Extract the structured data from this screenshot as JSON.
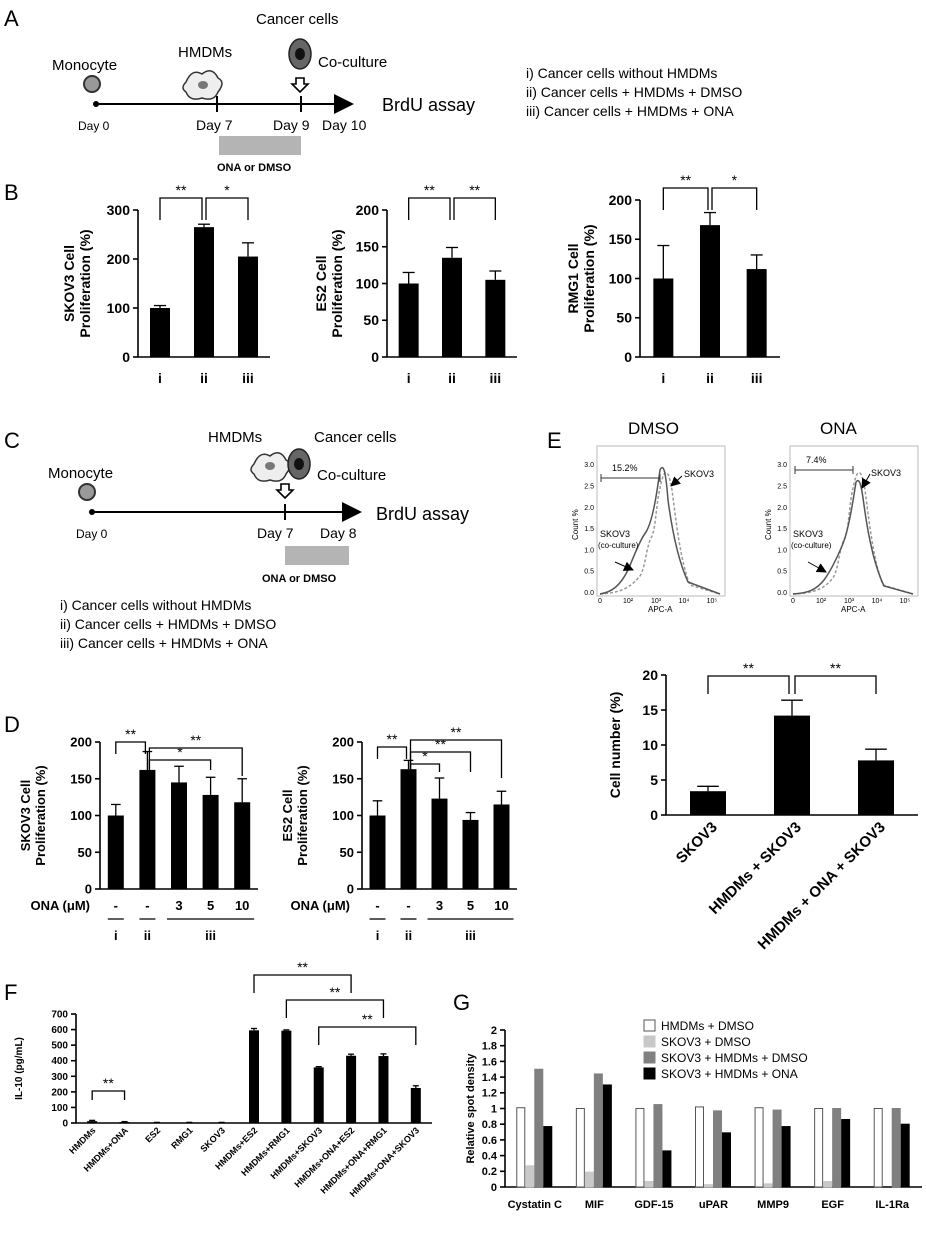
{
  "panel_labels": {
    "A": "A",
    "B": "B",
    "C": "C",
    "D": "D",
    "E": "E",
    "F": "F",
    "G": "G"
  },
  "panelA": {
    "monocyte": "Monocyte",
    "hmdms": "HMDMs",
    "cancer_cells": "Cancer cells",
    "coculture": "Co-culture",
    "assay": "BrdU assay",
    "day0": "Day 0",
    "day7": "Day 7",
    "day9": "Day 9",
    "day10": "Day 10",
    "treatment": "ONA or DMSO",
    "legend": [
      "i) Cancer cells without HMDMs",
      "ii) Cancer cells + HMDMs + DMSO",
      "iii) Cancer cells + HMDMs + ONA"
    ]
  },
  "panelC": {
    "monocyte": "Monocyte",
    "hmdms": "HMDMs",
    "cancer_cells": "Cancer cells",
    "coculture": "Co-culture",
    "assay": "BrdU assay",
    "day0": "Day 0",
    "day7": "Day 7",
    "day8": "Day 8",
    "treatment": "ONA or DMSO",
    "legend": [
      "i) Cancer cells without HMDMs",
      "ii) Cancer cells + HMDMs + DMSO",
      "iii) Cancer cells + HMDMs + ONA"
    ]
  },
  "panelE_flow": {
    "dmso_title": "DMSO",
    "ona_title": "ONA",
    "ylabel": "Count %",
    "xlabel": "APC-A",
    "dmso_gate": "15.2%",
    "ona_gate": "7.4%",
    "skov3": "SKOV3",
    "skov3_co": "SKOV3",
    "co_label": "(co-culture)",
    "yticks": [
      "0.0",
      "0.5",
      "1.0",
      "1.5",
      "2.0",
      "2.5",
      "3.0"
    ],
    "xticks": [
      "0",
      "10²",
      "10³",
      "10⁴",
      "10⁵"
    ]
  },
  "panelD_axis": {
    "ona_label": "ONA (μM)",
    "ona_values": [
      "-",
      "-",
      "3",
      "5",
      "10"
    ],
    "groups": [
      "i",
      "ii",
      "iii"
    ]
  },
  "sig": "**",
  "sig1": "*",
  "chart_data": [
    {
      "id": "B1",
      "type": "bar",
      "ylabel": "SKOV3 Cell Proliferation (%)",
      "categories": [
        "i",
        "ii",
        "iii"
      ],
      "values": [
        100,
        265,
        205
      ],
      "errors": [
        5,
        6,
        28
      ],
      "ylim": [
        0,
        300
      ],
      "yticks": [
        0,
        100,
        200,
        300
      ]
    },
    {
      "id": "B2",
      "type": "bar",
      "ylabel": "ES2 Cell Proliferation (%)",
      "categories": [
        "i",
        "ii",
        "iii"
      ],
      "values": [
        100,
        135,
        105
      ],
      "errors": [
        15,
        14,
        12
      ],
      "ylim": [
        0,
        200
      ],
      "yticks": [
        0,
        50,
        100,
        150,
        200
      ]
    },
    {
      "id": "B3",
      "type": "bar",
      "ylabel": "RMG1 Cell Proliferation (%)",
      "categories": [
        "i",
        "ii",
        "iii"
      ],
      "values": [
        100,
        168,
        112
      ],
      "errors": [
        42,
        16,
        18
      ],
      "ylim": [
        0,
        200
      ],
      "yticks": [
        0,
        50,
        100,
        150,
        200
      ]
    },
    {
      "id": "D1",
      "type": "bar",
      "ylabel": "SKOV3 Cell Proliferation (%)",
      "categories": [
        "-",
        "-",
        "3",
        "5",
        "10"
      ],
      "values": [
        100,
        162,
        145,
        128,
        118
      ],
      "errors": [
        15,
        25,
        22,
        24,
        32
      ],
      "ylim": [
        0,
        200
      ],
      "yticks": [
        0,
        50,
        100,
        150,
        200
      ]
    },
    {
      "id": "D2",
      "type": "bar",
      "ylabel": "ES2 Cell Proliferation (%)",
      "categories": [
        "-",
        "-",
        "3",
        "5",
        "10"
      ],
      "values": [
        100,
        163,
        123,
        94,
        115
      ],
      "errors": [
        20,
        12,
        28,
        10,
        18
      ],
      "ylim": [
        0,
        200
      ],
      "yticks": [
        0,
        50,
        100,
        150,
        200
      ]
    },
    {
      "id": "E",
      "type": "bar",
      "ylabel": "Cell number (%)",
      "categories": [
        "SKOV3",
        "HMDMs + SKOV3",
        "HMDMs + ONA + SKOV3"
      ],
      "values": [
        3.4,
        14.2,
        7.8
      ],
      "errors": [
        0.7,
        2.2,
        1.6
      ],
      "ylim": [
        0,
        20
      ],
      "yticks": [
        0,
        5,
        10,
        15,
        20
      ]
    },
    {
      "id": "F",
      "type": "bar",
      "ylabel": "IL-10 (pg/mL)",
      "categories": [
        "HMDMs",
        "HMDMs+ONA",
        "ES2",
        "RMG1",
        "SKOV3",
        "HMDMs+ES2",
        "HMDMs+RMG1",
        "HMDMs+SKOV3",
        "HMDMs+ONA+ES2",
        "HMDMs+ONA+RMG1",
        "HMDMs+ONA+SKOV3"
      ],
      "values": [
        12,
        6,
        3,
        3,
        3,
        595,
        593,
        357,
        432,
        430,
        225
      ],
      "errors": [
        5,
        3,
        1,
        1,
        1,
        12,
        5,
        5,
        10,
        14,
        14
      ],
      "ylim": [
        0,
        700
      ],
      "yticks": [
        0,
        100,
        200,
        300,
        400,
        500,
        600,
        700
      ]
    },
    {
      "id": "G",
      "type": "bar",
      "ylabel": "Relative spot density",
      "categories": [
        "Cystatin C",
        "MIF",
        "GDF-15",
        "uPAR",
        "MMP9",
        "EGF",
        "IL-1Ra"
      ],
      "series": [
        {
          "name": "HMDMs + DMSO",
          "values": [
            1.01,
            1.0,
            1.0,
            1.02,
            1.01,
            1.0,
            1.0
          ],
          "color": "#ffffff"
        },
        {
          "name": "SKOV3 + DMSO",
          "values": [
            0.27,
            0.19,
            0.07,
            0.03,
            0.04,
            0.07,
            0.0
          ],
          "color": "#c8c8c8"
        },
        {
          "name": "SKOV3 + HMDMs + DMSO",
          "values": [
            1.5,
            1.44,
            1.05,
            0.97,
            0.98,
            1.0,
            1.0
          ],
          "color": "#808080"
        },
        {
          "name": "SKOV3 + HMDMs + ONA",
          "values": [
            0.77,
            1.3,
            0.46,
            0.69,
            0.77,
            0.86,
            0.8
          ],
          "color": "#000000"
        }
      ],
      "ylim": [
        0,
        2
      ],
      "yticks": [
        "0",
        "0.2",
        "0.4",
        "0.6",
        "0.8",
        "1",
        "1.2",
        "1.4",
        "1.6",
        "1.8",
        "2"
      ]
    }
  ]
}
